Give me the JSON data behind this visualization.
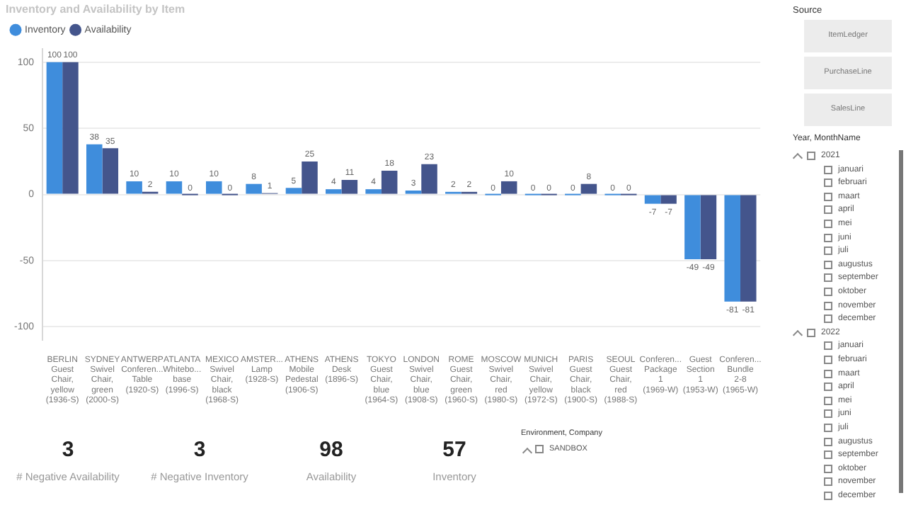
{
  "chart_data": [
    {
      "type": "bar",
      "title": "Inventory and Availability by Item",
      "categories": [
        "BERLIN Guest Chair, yellow (1936-S)",
        "SYDNEY Swivel Chair, green (2000-S)",
        "ANTWERP Conferen... Table (1920-S)",
        "ATLANTA Whitebo... base (1996-S)",
        "MEXICO Swivel Chair, black (1968-S)",
        "AMSTER... Lamp (1928-S)",
        "ATHENS Mobile Pedestal (1906-S)",
        "ATHENS Desk (1896-S)",
        "TOKYO Guest Chair, blue (1964-S)",
        "LONDON Swivel Chair, blue (1908-S)",
        "ROME Guest Chair, green (1960-S)",
        "MOSCOW Swivel Chair, red (1980-S)",
        "MUNICH Swivel Chair, yellow (1972-S)",
        "PARIS Guest Chair, black (1900-S)",
        "SEOUL Guest Chair, red (1988-S)",
        "Conferen... Package 1 (1969-W)",
        "Guest Section 1 (1953-W)",
        "Conferen... Bundle 2-8 (1965-W)"
      ],
      "series": [
        {
          "name": "Inventory",
          "color": "#3f8ddc",
          "values": [
            100,
            38,
            10,
            10,
            10,
            8,
            5,
            4,
            4,
            3,
            2,
            0,
            0,
            0,
            0,
            -7,
            -49,
            -81
          ]
        },
        {
          "name": "Availability",
          "color": "#44558c",
          "values": [
            100,
            35,
            2,
            0,
            0,
            1,
            25,
            11,
            18,
            23,
            2,
            10,
            0,
            8,
            0,
            -7,
            -49,
            -81
          ]
        }
      ],
      "ylim": [
        -110,
        110
      ],
      "yticks": [
        -100,
        -50,
        0,
        50,
        100
      ],
      "grid": "y",
      "legend": "top left",
      "data_labels": true
    },
    {
      "type": "other",
      "categories": [
        "# Negative Availability",
        "# Negative Inventory",
        "Availability",
        "Inventory"
      ],
      "values": [
        3,
        3,
        98,
        57
      ],
      "data_labels": true
    },
    {
      "type": "other",
      "title": "Source",
      "categories": [
        "ItemLedger",
        "PurchaseLine",
        "SalesLine"
      ]
    },
    {
      "type": "other",
      "title": "Year, MonthName",
      "categories": [
        "2021",
        "januari",
        "februari",
        "maart",
        "april",
        "mei",
        "juni",
        "juli",
        "augustus",
        "september",
        "oktober",
        "november",
        "december",
        "2022",
        "januari",
        "februari",
        "maart",
        "april",
        "mei",
        "juni",
        "juli",
        "augustus",
        "september",
        "oktober",
        "november",
        "december"
      ]
    },
    {
      "type": "other",
      "title": "Environment, Company",
      "categories": [
        "SANDBOX"
      ]
    }
  ]
}
